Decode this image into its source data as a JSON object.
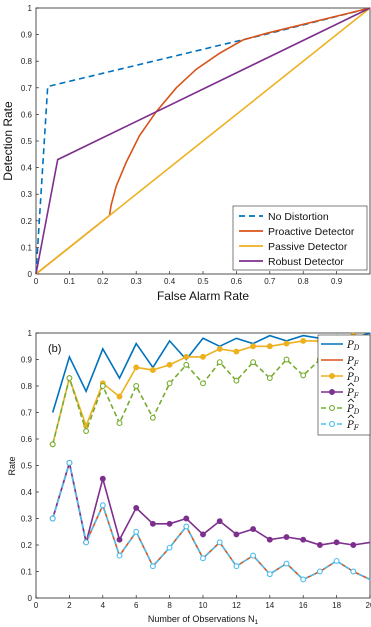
{
  "chart_data": [
    {
      "type": "line",
      "xlabel": "False Alarm Rate",
      "ylabel": "Detection Rate",
      "xlim": [
        0,
        1
      ],
      "ylim": [
        0,
        1
      ],
      "grid": false,
      "legend_position": "bottom-right",
      "xticks": [
        "0",
        "0.1",
        "0.2",
        "0.3",
        "0.4",
        "0.5",
        "0.6",
        "0.7",
        "0.8",
        "0.9"
      ],
      "yticks": [
        "0",
        "0.1",
        "0.2",
        "0.3",
        "0.4",
        "0.5",
        "0.6",
        "0.7",
        "0.8",
        "0.9",
        "1"
      ],
      "series": [
        {
          "name": "No Distortion",
          "color": "#0072BD",
          "style": "dashed",
          "x": [
            0,
            0.035,
            0.7,
            1
          ],
          "y": [
            0,
            0.705,
            0.905,
            1
          ]
        },
        {
          "name": "Proactive Detector",
          "color": "#D95319",
          "style": "solid",
          "x": [
            0,
            0.22,
            0.225,
            0.24,
            0.27,
            0.31,
            0.36,
            0.42,
            0.48,
            0.55,
            0.62,
            0.69,
            1
          ],
          "y": [
            0,
            0.22,
            0.26,
            0.33,
            0.42,
            0.52,
            0.61,
            0.7,
            0.77,
            0.83,
            0.88,
            0.905,
            1
          ]
        },
        {
          "name": "Passive Detector",
          "color": "#EDB120",
          "style": "solid",
          "x": [
            0,
            1
          ],
          "y": [
            0,
            1
          ]
        },
        {
          "name": "Robust Detector",
          "color": "#7E2F8E",
          "style": "solid",
          "x": [
            0,
            0.065,
            1
          ],
          "y": [
            0,
            0.43,
            1
          ]
        }
      ]
    },
    {
      "type": "line",
      "panel_label": "(b)",
      "xlabel": "Number of Observations N",
      "xlabel_sub": "1",
      "ylabel": "Rate",
      "xlim": [
        0,
        20
      ],
      "ylim": [
        0,
        1
      ],
      "grid": false,
      "legend_position": "top-right",
      "xticks": [
        "0",
        "2",
        "4",
        "6",
        "8",
        "10",
        "12",
        "14",
        "16",
        "18",
        "20"
      ],
      "yticks": [
        "0",
        "0.1",
        "0.2",
        "0.3",
        "0.4",
        "0.5",
        "0.6",
        "0.7",
        "0.8",
        "0.9",
        "1"
      ],
      "x": [
        1,
        2,
        3,
        4,
        5,
        6,
        7,
        8,
        9,
        10,
        11,
        12,
        13,
        14,
        15,
        16,
        17,
        18,
        19,
        20
      ],
      "series": [
        {
          "base": "P",
          "sub": "D",
          "hat": false,
          "color": "#0072BD",
          "style": "solid",
          "marker": "none",
          "values": [
            0.7,
            0.91,
            0.78,
            0.94,
            0.83,
            0.96,
            0.87,
            0.97,
            0.9,
            0.98,
            0.95,
            0.98,
            0.96,
            0.99,
            0.97,
            0.99,
            0.98,
            0.99,
            0.98,
            1.0
          ]
        },
        {
          "base": "P",
          "sub": "F",
          "hat": false,
          "color": "#D95319",
          "style": "solid",
          "marker": "none",
          "values": [
            0.3,
            0.51,
            0.21,
            0.35,
            0.16,
            0.25,
            0.12,
            0.19,
            0.27,
            0.15,
            0.21,
            0.12,
            0.16,
            0.09,
            0.13,
            0.07,
            0.1,
            0.14,
            0.1,
            0.07
          ]
        },
        {
          "base": "P",
          "sub": "D",
          "hat": true,
          "color": "#EDB120",
          "style": "solid",
          "marker": "circle",
          "values": [
            0.58,
            0.83,
            0.65,
            0.81,
            0.76,
            0.87,
            0.86,
            0.88,
            0.91,
            0.91,
            0.94,
            0.93,
            0.95,
            0.95,
            0.96,
            0.97,
            0.97,
            0.98,
            0.99,
            0.99
          ]
        },
        {
          "base": "P",
          "sub": "F",
          "hat": true,
          "color": "#7E2F8E",
          "style": "solid",
          "marker": "circle",
          "values": [
            0.3,
            0.51,
            0.21,
            0.45,
            0.22,
            0.34,
            0.28,
            0.28,
            0.3,
            0.24,
            0.29,
            0.24,
            0.26,
            0.22,
            0.23,
            0.22,
            0.2,
            0.21,
            0.2,
            0.21
          ]
        },
        {
          "base": "P",
          "sub": "D",
          "hat": true,
          "color": "#77AC30",
          "style": "dashed",
          "marker": "open-circle",
          "values": [
            0.58,
            0.83,
            0.63,
            0.8,
            0.66,
            0.8,
            0.68,
            0.81,
            0.88,
            0.81,
            0.89,
            0.82,
            0.89,
            0.83,
            0.9,
            0.84,
            0.9,
            0.85,
            0.9,
            0.86
          ]
        },
        {
          "base": "P",
          "sub": "F",
          "hat": true,
          "color": "#4DBEEE",
          "style": "dashed",
          "marker": "open-circle",
          "values": [
            0.3,
            0.51,
            0.21,
            0.35,
            0.16,
            0.25,
            0.12,
            0.19,
            0.27,
            0.15,
            0.21,
            0.12,
            0.16,
            0.09,
            0.13,
            0.07,
            0.1,
            0.14,
            0.1,
            0.07
          ]
        }
      ]
    }
  ]
}
